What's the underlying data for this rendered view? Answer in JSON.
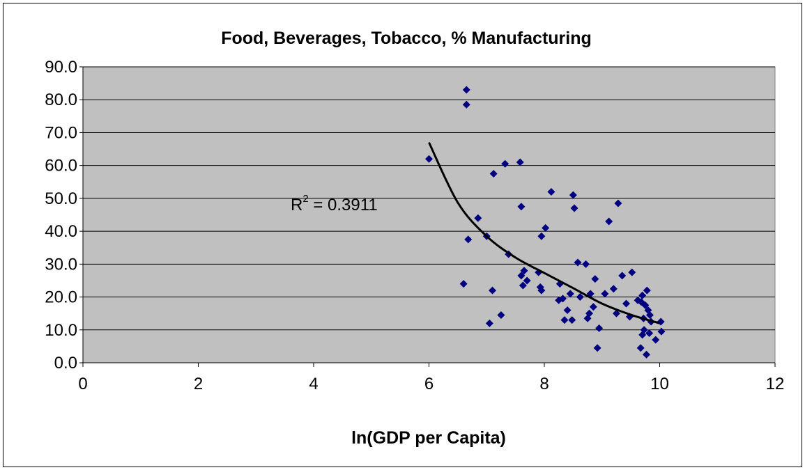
{
  "chart_data": {
    "type": "scatter",
    "title": "Food, Beverages, Tobacco, % Manufacturing",
    "xlabel": "ln(GDP per Capita)",
    "ylabel": "",
    "xlim": [
      0,
      12
    ],
    "ylim": [
      0,
      90
    ],
    "x_ticks": [
      "0",
      "2",
      "4",
      "6",
      "8",
      "10",
      "12"
    ],
    "y_ticks": [
      "0.0",
      "10.0",
      "20.0",
      "30.0",
      "40.0",
      "50.0",
      "60.0",
      "70.0",
      "80.0",
      "90.0"
    ],
    "grid": "horizontal",
    "plot_background": "#c0c0c0",
    "marker_color": "#000080",
    "trendline_color": "#000000",
    "trendline": {
      "type": "power",
      "annotation": {
        "prefix": "R",
        "superscript": "2",
        "suffix": " = 0.3911"
      },
      "points": [
        [
          6.0,
          67.0
        ],
        [
          6.5,
          48.7
        ],
        [
          7.0,
          38.5
        ],
        [
          7.5,
          32.0
        ],
        [
          8.0,
          27.3
        ],
        [
          8.5,
          22.7
        ],
        [
          9.0,
          18.0
        ],
        [
          9.5,
          14.6
        ],
        [
          10.0,
          12.0
        ]
      ]
    },
    "points": [
      [
        6.0,
        62.0
      ],
      [
        6.6,
        24.0
      ],
      [
        6.65,
        83.0
      ],
      [
        6.65,
        78.5
      ],
      [
        6.68,
        37.5
      ],
      [
        6.85,
        44.0
      ],
      [
        7.0,
        38.5
      ],
      [
        7.05,
        12.0
      ],
      [
        7.1,
        22.0
      ],
      [
        7.12,
        57.5
      ],
      [
        7.25,
        14.5
      ],
      [
        7.32,
        60.5
      ],
      [
        7.38,
        33.0
      ],
      [
        7.58,
        61.0
      ],
      [
        7.6,
        47.5
      ],
      [
        7.6,
        26.5
      ],
      [
        7.63,
        23.5
      ],
      [
        7.65,
        28.0
      ],
      [
        7.7,
        25.0
      ],
      [
        7.9,
        27.5
      ],
      [
        7.93,
        23.0
      ],
      [
        7.95,
        38.5
      ],
      [
        7.95,
        22.0
      ],
      [
        8.02,
        41.0
      ],
      [
        8.12,
        52.0
      ],
      [
        8.25,
        19.0
      ],
      [
        8.27,
        24.0
      ],
      [
        8.32,
        19.5
      ],
      [
        8.35,
        13.0
      ],
      [
        8.4,
        16.0
      ],
      [
        8.45,
        21.0
      ],
      [
        8.48,
        13.0
      ],
      [
        8.5,
        51.0
      ],
      [
        8.52,
        47.0
      ],
      [
        8.58,
        30.5
      ],
      [
        8.62,
        20.0
      ],
      [
        8.72,
        30.0
      ],
      [
        8.75,
        13.5
      ],
      [
        8.78,
        15.0
      ],
      [
        8.8,
        21.0
      ],
      [
        8.85,
        17.0
      ],
      [
        8.88,
        25.5
      ],
      [
        8.92,
        4.5
      ],
      [
        8.95,
        10.5
      ],
      [
        9.05,
        21.0
      ],
      [
        9.12,
        43.0
      ],
      [
        9.2,
        22.5
      ],
      [
        9.25,
        15.0
      ],
      [
        9.28,
        48.5
      ],
      [
        9.35,
        26.5
      ],
      [
        9.42,
        18.0
      ],
      [
        9.48,
        14.0
      ],
      [
        9.52,
        27.5
      ],
      [
        9.62,
        19.0
      ],
      [
        9.67,
        4.5
      ],
      [
        9.68,
        18.5
      ],
      [
        9.7,
        20.5
      ],
      [
        9.7,
        8.5
      ],
      [
        9.72,
        13.5
      ],
      [
        9.73,
        10.0
      ],
      [
        9.75,
        17.5
      ],
      [
        9.77,
        2.5
      ],
      [
        9.78,
        22.0
      ],
      [
        9.8,
        16.0
      ],
      [
        9.82,
        9.0
      ],
      [
        9.83,
        14.5
      ],
      [
        9.85,
        12.5
      ],
      [
        9.93,
        7.0
      ],
      [
        10.02,
        12.5
      ],
      [
        10.03,
        9.5
      ]
    ]
  }
}
